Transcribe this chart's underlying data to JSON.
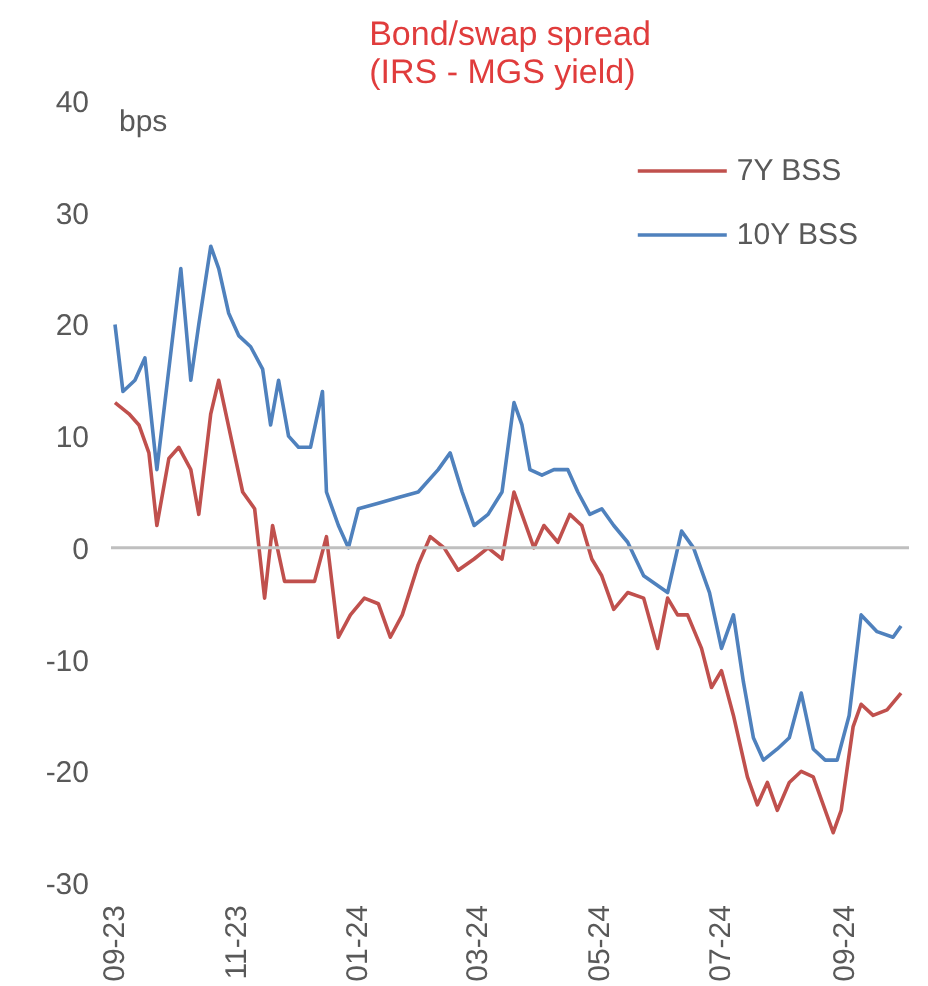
{
  "chart_data": {
    "type": "line",
    "title": "Bond/swap spread\n(IRS - MGS yield)",
    "ylabel": "bps",
    "xlim": [
      "2023-08-31",
      "2024-10-04"
    ],
    "xticks": [
      {
        "value": "2023-09-01",
        "label": "09-23"
      },
      {
        "value": "2023-11-01",
        "label": "11-23"
      },
      {
        "value": "2024-01-01",
        "label": "01-24"
      },
      {
        "value": "2024-03-01",
        "label": "03-24"
      },
      {
        "value": "2024-05-01",
        "label": "05-24"
      },
      {
        "value": "2024-07-01",
        "label": "07-24"
      },
      {
        "value": "2024-09-01",
        "label": "09-24"
      }
    ],
    "ylim": [
      -30,
      40
    ],
    "yticks": [
      -30,
      -20,
      -10,
      0,
      10,
      20,
      30,
      40
    ],
    "ref_lines": [
      {
        "axis": "y",
        "value": 0,
        "color": "#bfbfbf"
      }
    ],
    "legend": "top right",
    "grid": false,
    "marker": "none",
    "line_style": "solid",
    "series": [
      {
        "name": "7Y BSS",
        "color": "#c0504d",
        "x": [
          "2023-09-02",
          "2023-09-09",
          "2023-09-14",
          "2023-09-19",
          "2023-09-23",
          "2023-09-29",
          "2023-10-04",
          "2023-10-10",
          "2023-10-14",
          "2023-10-20",
          "2023-10-24",
          "2023-10-30",
          "2023-11-05",
          "2023-11-11",
          "2023-11-16",
          "2023-11-20",
          "2023-11-26",
          "2023-12-03",
          "2023-12-11",
          "2023-12-17",
          "2023-12-23",
          "2023-12-29",
          "2024-01-05",
          "2024-01-12",
          "2024-01-18",
          "2024-01-24",
          "2024-02-01",
          "2024-02-07",
          "2024-02-14",
          "2024-02-21",
          "2024-02-29",
          "2024-03-07",
          "2024-03-14",
          "2024-03-20",
          "2024-03-24",
          "2024-03-30",
          "2024-04-04",
          "2024-04-11",
          "2024-04-17",
          "2024-04-23",
          "2024-04-28",
          "2024-05-03",
          "2024-05-09",
          "2024-05-16",
          "2024-05-24",
          "2024-05-31",
          "2024-06-05",
          "2024-06-10",
          "2024-06-15",
          "2024-06-22",
          "2024-06-27",
          "2024-07-02",
          "2024-07-08",
          "2024-07-15",
          "2024-07-20",
          "2024-07-25",
          "2024-07-30",
          "2024-08-05",
          "2024-08-11",
          "2024-08-17",
          "2024-08-24",
          "2024-08-27",
          "2024-08-31",
          "2024-09-06",
          "2024-09-10",
          "2024-09-16",
          "2024-09-23",
          "2024-09-30"
        ],
        "values": [
          13,
          12,
          11,
          8.5,
          2,
          8,
          9,
          7,
          3,
          12,
          15,
          10,
          5,
          3.5,
          -4.5,
          2,
          -3,
          -3,
          -3,
          1,
          -8,
          -6,
          -4.5,
          -5,
          -8,
          -6,
          -1.5,
          1,
          0,
          -2,
          -1,
          0,
          -1,
          5,
          3,
          0,
          2,
          0.5,
          3,
          2,
          -1,
          -2.5,
          -5.5,
          -4,
          -4.5,
          -9,
          -4.5,
          -6,
          -6,
          -9,
          -12.5,
          -11,
          -15,
          -20.5,
          -23,
          -21,
          -23.5,
          -21,
          -20,
          -20.5,
          -24,
          -25.5,
          -23.5,
          -16,
          -14,
          -15,
          -14.5,
          -13
        ]
      },
      {
        "name": "10Y BSS",
        "color": "#4f81bd",
        "x": [
          "2023-09-02",
          "2023-09-06",
          "2023-09-12",
          "2023-09-17",
          "2023-09-23",
          "2023-09-29",
          "2023-10-05",
          "2023-10-10",
          "2023-10-14",
          "2023-10-20",
          "2023-10-24",
          "2023-10-29",
          "2023-11-03",
          "2023-11-09",
          "2023-11-15",
          "2023-11-19",
          "2023-11-23",
          "2023-11-28",
          "2023-12-03",
          "2023-12-09",
          "2023-12-15",
          "2023-12-17",
          "2023-12-23",
          "2023-12-28",
          "2024-01-02",
          "2024-01-12",
          "2024-01-22",
          "2024-02-01",
          "2024-02-11",
          "2024-02-17",
          "2024-02-23",
          "2024-02-29",
          "2024-03-07",
          "2024-03-14",
          "2024-03-20",
          "2024-03-24",
          "2024-03-28",
          "2024-04-03",
          "2024-04-09",
          "2024-04-16",
          "2024-04-21",
          "2024-04-27",
          "2024-05-03",
          "2024-05-09",
          "2024-05-16",
          "2024-05-24",
          "2024-06-05",
          "2024-06-12",
          "2024-06-18",
          "2024-06-26",
          "2024-07-02",
          "2024-07-08",
          "2024-07-13",
          "2024-07-18",
          "2024-07-23",
          "2024-07-30",
          "2024-08-05",
          "2024-08-11",
          "2024-08-17",
          "2024-08-23",
          "2024-08-29",
          "2024-09-04",
          "2024-09-10",
          "2024-09-18",
          "2024-09-26",
          "2024-09-30"
        ],
        "values": [
          20,
          14,
          15,
          17,
          7,
          16,
          25,
          15,
          20,
          27,
          25,
          21,
          19,
          18,
          16,
          11,
          15,
          10,
          9,
          9,
          14,
          5,
          2,
          0,
          3.5,
          4,
          4.5,
          5,
          7,
          8.5,
          5,
          2,
          3,
          5,
          13,
          11,
          7,
          6.5,
          7,
          7,
          5,
          3,
          3.5,
          2,
          0.5,
          -2.5,
          -4,
          1.5,
          0,
          -4,
          -9,
          -6,
          -12,
          -17,
          -19,
          -18,
          -17,
          -13,
          -18,
          -19,
          -19,
          -15,
          -6,
          -7.5,
          -8,
          -7
        ]
      }
    ]
  }
}
